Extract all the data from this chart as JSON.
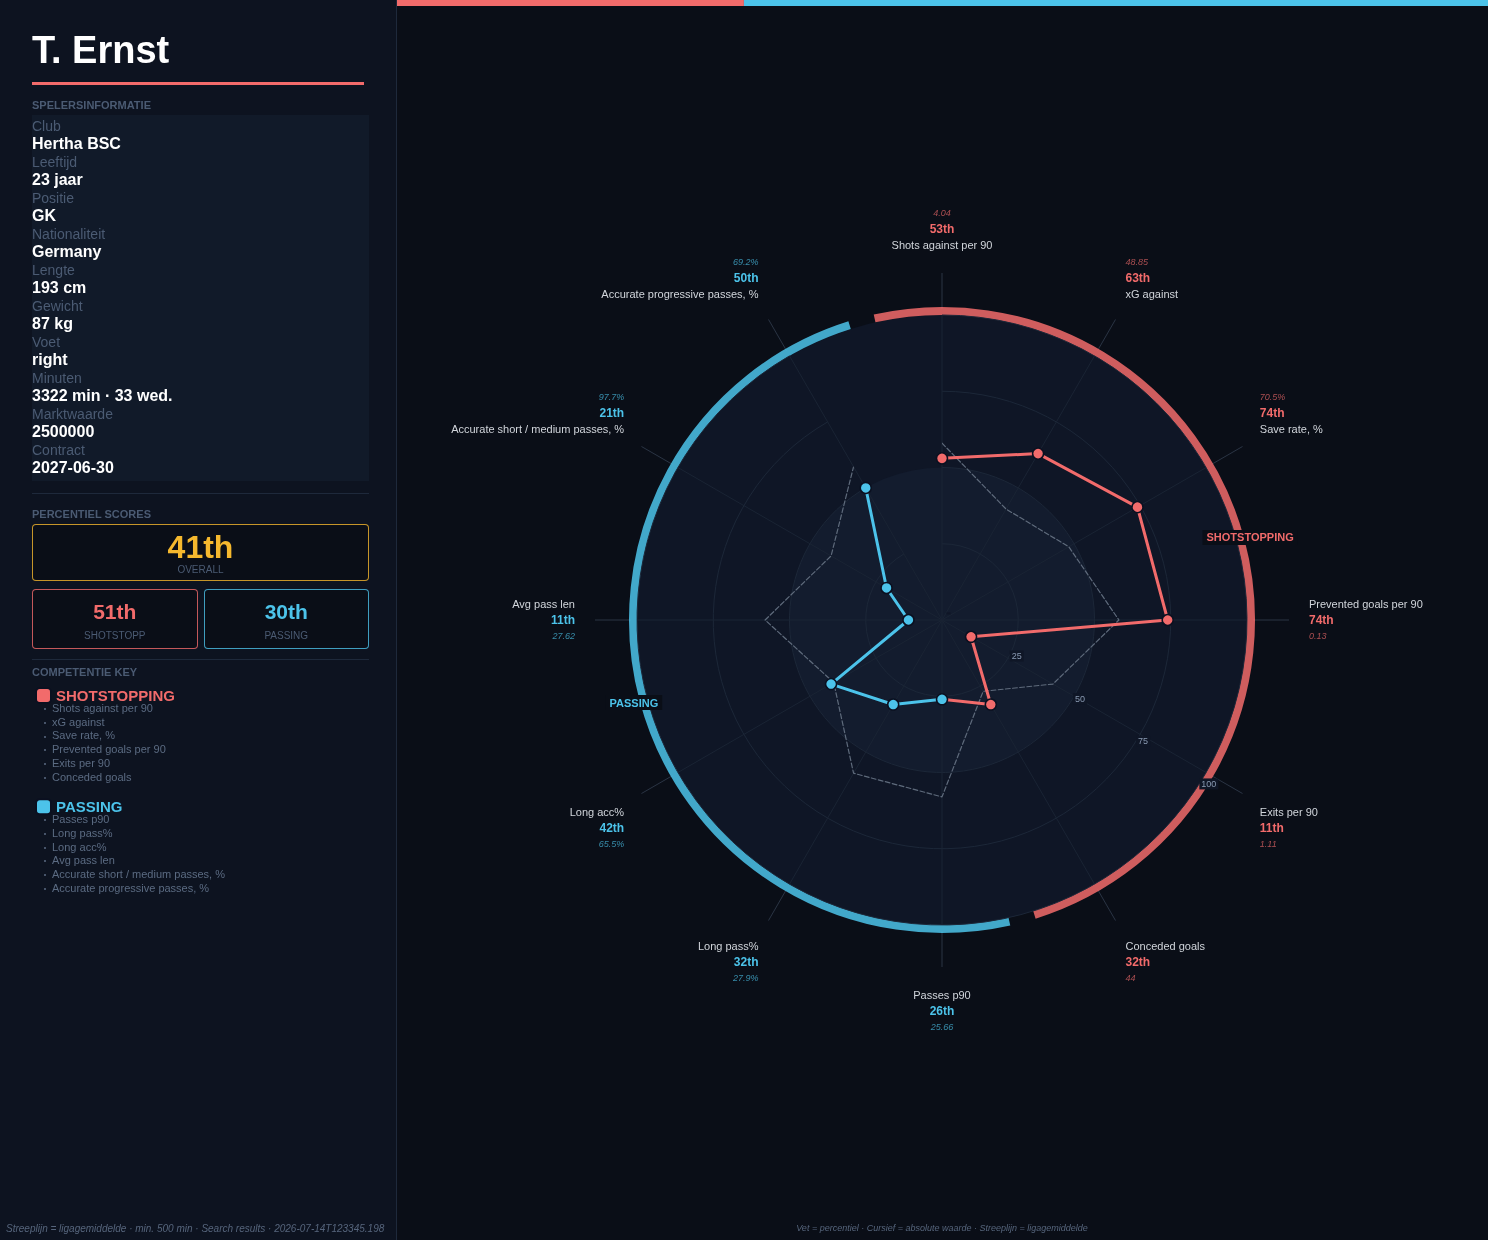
{
  "chart_data": [
    {
      "type": "other",
      "title": "T. Ernst"
    },
    {
      "type": "other",
      "title": "SPELERSINFORMATIE",
      "annotations": [
        "Club",
        "Hertha BSC",
        "Leeftijd",
        "23 jaar",
        "Positie",
        "GK",
        "Nationaliteit",
        "Germany",
        "Lengte",
        "193 cm",
        "Gewicht",
        "87 kg",
        "Voet",
        "right",
        "Minuten",
        "3322 min · 33 wed.",
        "Marktwaarde",
        "2500000",
        "Contract",
        "2027-06-30"
      ]
    },
    {
      "type": "other",
      "title": "PERCENTIEL SCORES",
      "annotations": [
        "41th",
        "OVERALL",
        "51th",
        "SHOTSTOPP",
        "30th",
        "PASSING"
      ]
    },
    {
      "type": "radar",
      "categories": [
        "Shots against per 90",
        "xG against",
        "Save rate, %",
        "Prevented goals per 90",
        "Exits per 90",
        "Conceded goals",
        "Passes p90",
        "Long pass%",
        "Long acc%",
        "Avg pass len",
        "Accurate short / medium passes, %",
        "Accurate progressive passes, %"
      ],
      "series": [
        {
          "name": "SHOTSTOPPING",
          "color": "#f26b6b",
          "values": [
            53,
            63,
            74,
            74,
            11,
            32,
            26,
            null,
            null,
            null,
            null,
            null
          ]
        },
        {
          "name": "PASSING",
          "color": "#4cc3ea",
          "values": [
            53,
            null,
            null,
            null,
            null,
            null,
            26,
            32,
            42,
            11,
            21,
            50
          ]
        },
        {
          "color": "#5f6b7c",
          "values": [
            58,
            42,
            48,
            58,
            42,
            27,
            58,
            58,
            41,
            58,
            42,
            58
          ],
          "line_style": "dashed",
          "marker": "none"
        }
      ],
      "ylim": [
        0,
        100
      ],
      "yticks": [
        25,
        50,
        75,
        100
      ],
      "grid": true,
      "legend": "left",
      "legend_title": "COMPETENTIE KEY",
      "marker": "circle",
      "line_style": "solid",
      "annotations": [
        {
          "text": "53th",
          "x": "Shots against per 90"
        },
        {
          "text": "63th",
          "x": "xG against"
        },
        {
          "text": "74th",
          "x": "Save rate, %"
        },
        {
          "text": "74th",
          "x": "Prevented goals per 90"
        },
        {
          "text": "11th",
          "x": "Exits per 90"
        },
        {
          "text": "32th",
          "x": "Conceded goals"
        },
        {
          "text": "26th",
          "x": "Passes p90"
        },
        {
          "text": "32th",
          "x": "Long pass%"
        },
        {
          "text": "42th",
          "x": "Long acc%"
        },
        {
          "text": "11th",
          "x": "Avg pass len"
        },
        {
          "text": "21th",
          "x": "Accurate short / medium passes, %"
        },
        {
          "text": "50th",
          "x": "Accurate progressive passes, %"
        },
        {
          "text": "4.04",
          "x": "Shots against per 90"
        },
        {
          "text": "48.85",
          "x": "xG against"
        },
        {
          "text": "70.5%",
          "x": "Save rate, %"
        },
        {
          "text": "0.13",
          "x": "Prevented goals per 90"
        },
        {
          "text": "1.11",
          "x": "Exits per 90"
        },
        {
          "text": "44",
          "x": "Conceded goals"
        },
        {
          "text": "25.66",
          "x": "Passes p90"
        },
        {
          "text": "27.9%",
          "x": "Long pass%"
        },
        {
          "text": "65.5%",
          "x": "Long acc%"
        },
        {
          "text": "27.62",
          "x": "Avg pass len"
        },
        {
          "text": "97.7%",
          "x": "Accurate short / medium passes, %"
        },
        {
          "text": "69.2%",
          "x": "Accurate progressive passes, %"
        },
        "Streeplijn = ligagemiddelde · min. 500 min · Search results · 2026-07-14T123345.198",
        "Vet = percentiel · Cursief = absolute waarde · Streeplijn = ligagemiddelde"
      ]
    }
  ]
}
